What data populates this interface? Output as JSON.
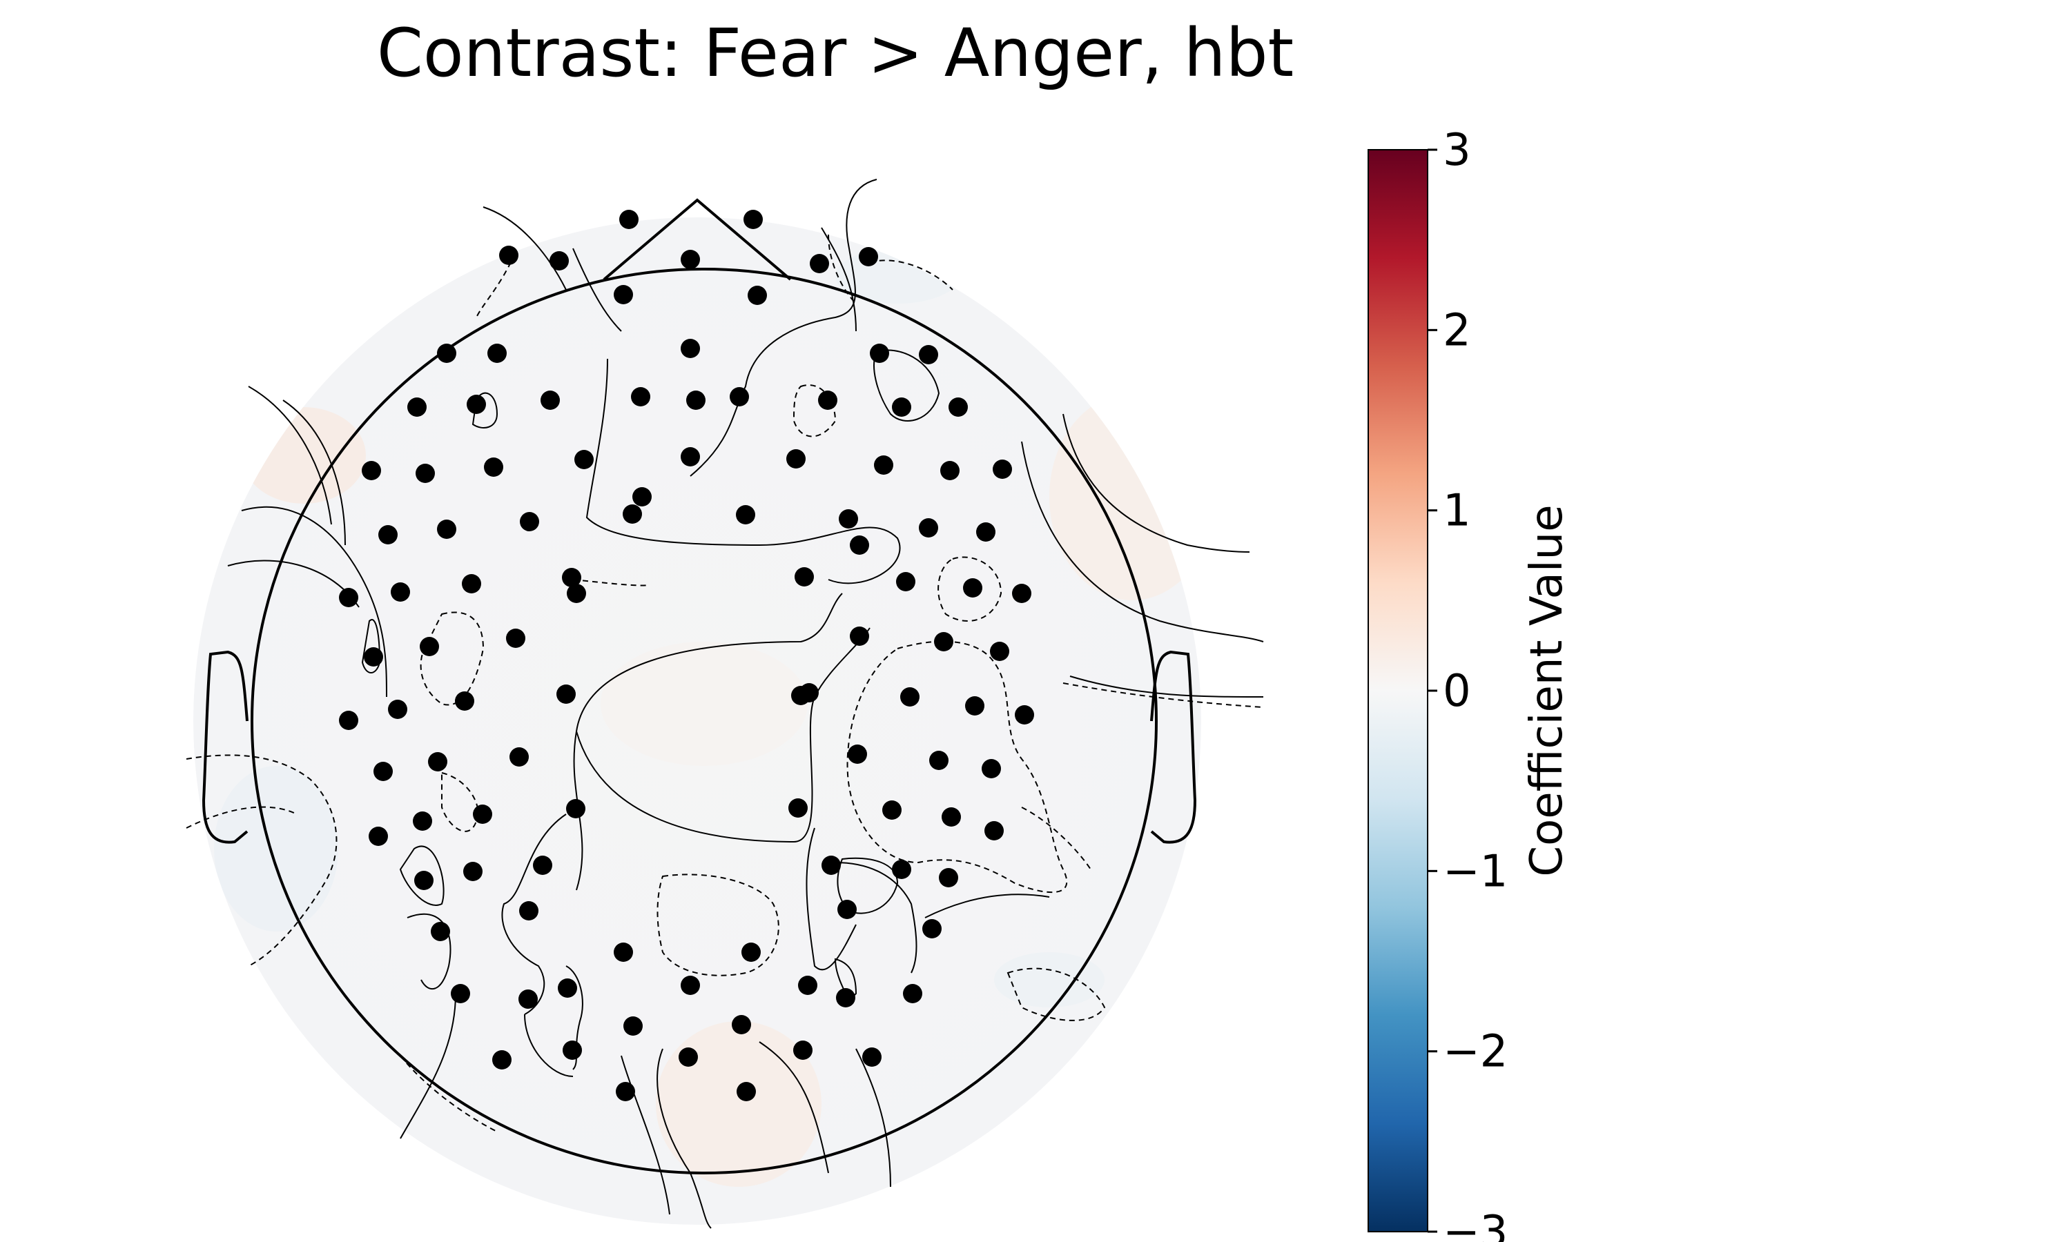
{
  "chart_data": {
    "type": "heatmap",
    "subtype": "scalp-topomap",
    "title": "Contrast: Fear > Anger, hbt",
    "colorbar": {
      "label": "Coefficient Value",
      "range": [
        -3,
        3
      ],
      "ticks": [
        "3",
        "2",
        "1",
        "0",
        "−1",
        "−2",
        "−3"
      ],
      "tick_values": [
        3,
        2,
        1,
        0,
        -1,
        -2,
        -3
      ],
      "colormap": "RdBu_r",
      "color_stops": [
        "#67001f",
        "#b2182b",
        "#d6604d",
        "#f4a582",
        "#fddbc7",
        "#f7f7f7",
        "#d1e5f0",
        "#92c5de",
        "#4393c3",
        "#2166ac",
        "#053061"
      ]
    },
    "channel_count": 131,
    "field_summary": "All coefficient values near 0 (approx. -0.3 to 0.3)",
    "colors": {
      "near_zero_field": "#f4f5f6",
      "slightly_positive": "#f7eee9",
      "slightly_negative": "#edf1f5",
      "sensor_marker": "#000000",
      "outline": "#000000"
    }
  }
}
